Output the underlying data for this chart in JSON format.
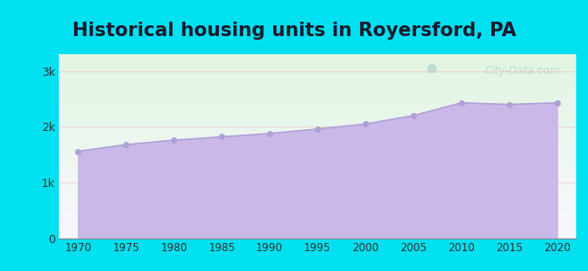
{
  "title": "Historical housing units in Royersford, PA",
  "title_fontsize": 15,
  "title_fontweight": "bold",
  "title_color": "#1a1a2e",
  "background_color": "#00e0f0",
  "years": [
    1970,
    1975,
    1980,
    1985,
    1990,
    1995,
    2000,
    2005,
    2010,
    2015,
    2020
  ],
  "values": [
    1560,
    1680,
    1760,
    1820,
    1880,
    1960,
    2050,
    2200,
    2430,
    2400,
    2430
  ],
  "fill_color": "#c9b8e8",
  "fill_alpha": 1.0,
  "line_color": "#b0a0d8",
  "marker_color": "#b0a0d8",
  "marker_size": 4,
  "yticks": [
    0,
    1000,
    2000,
    3000
  ],
  "ytick_labels": [
    "0",
    "1k",
    "2k",
    "3k"
  ],
  "ylim": [
    0,
    3300
  ],
  "xlim": [
    1968,
    2022
  ],
  "xticks": [
    1970,
    1975,
    1980,
    1985,
    1990,
    1995,
    2000,
    2005,
    2010,
    2015,
    2020
  ],
  "grid_color": "#f0c0c0",
  "grid_alpha": 0.6,
  "watermark_text": "City-Data.com",
  "watermark_color": "#a8c4c4",
  "watermark_alpha": 0.55,
  "bg_top_color": "#d8f0d8",
  "bg_bottom_color": "#f5f5ff"
}
